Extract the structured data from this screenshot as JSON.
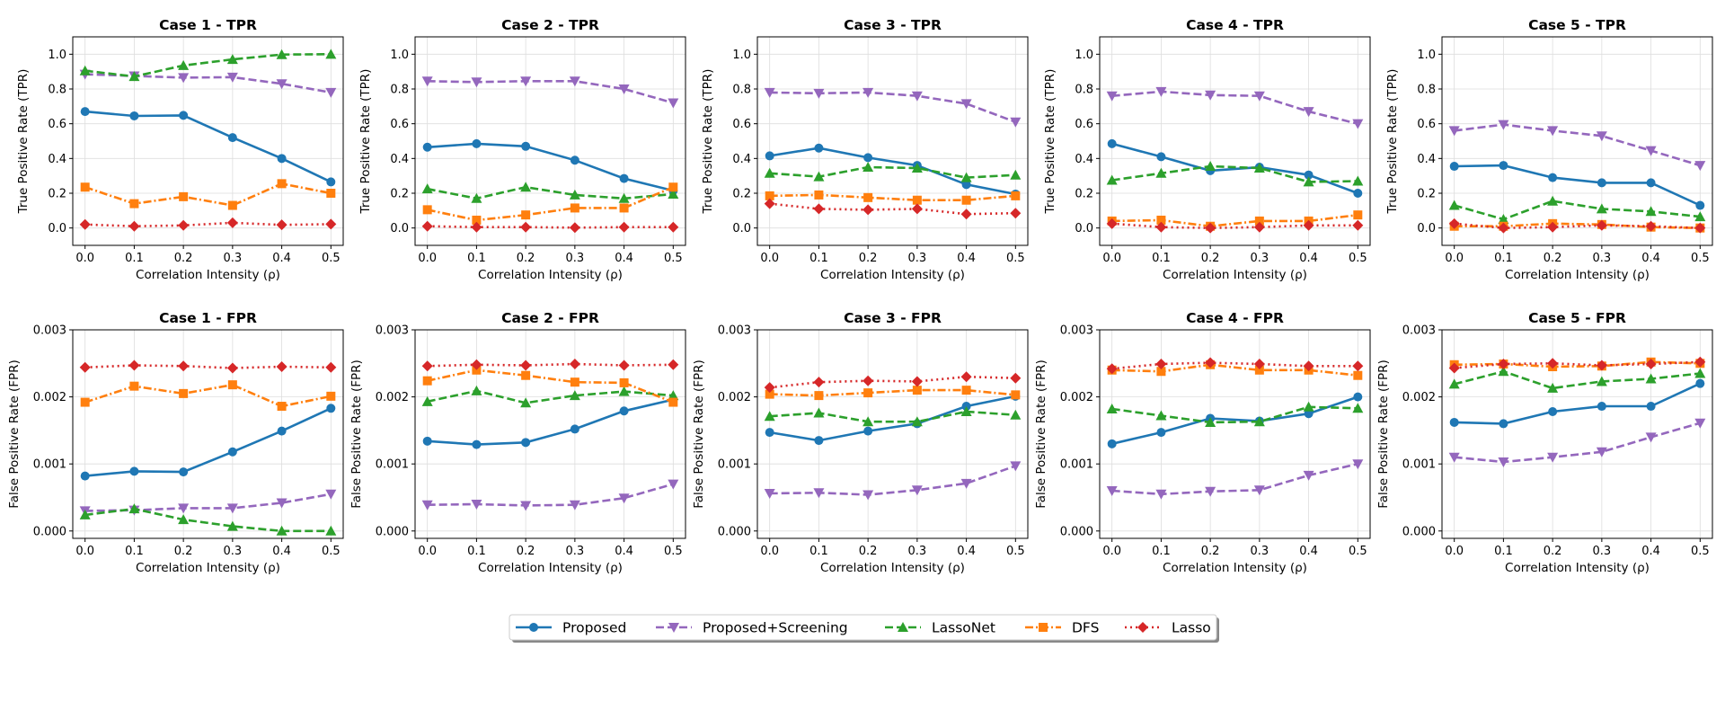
{
  "figure": {
    "legend_position": "bottom-center",
    "legend": [
      {
        "name": "Proposed",
        "color": "#1f77b4",
        "marker": "circle",
        "dash": "solid"
      },
      {
        "name": "Proposed+Screening",
        "color": "#9467bd",
        "marker": "triangle-down",
        "dash": "dashed"
      },
      {
        "name": "LassoNet",
        "color": "#2ca02c",
        "marker": "triangle-up",
        "dash": "dashed"
      },
      {
        "name": "DFS",
        "color": "#ff7f0e",
        "marker": "square",
        "dash": "dashdot"
      },
      {
        "name": "Lasso",
        "color": "#d62728",
        "marker": "diamond",
        "dash": "dotted"
      }
    ]
  },
  "chart_data": [
    {
      "type": "line",
      "title": "Case 1 - TPR",
      "xlabel": "Correlation Intensity (ρ)",
      "ylabel": "True Positive Rate (TPR)",
      "x": [
        0.0,
        0.1,
        0.2,
        0.3,
        0.4,
        0.5
      ],
      "xticks": [
        "0.0",
        "0.1",
        "0.2",
        "0.3",
        "0.4",
        "0.5"
      ],
      "ylim": [
        -0.1,
        1.1
      ],
      "yticks": [
        "0.0",
        "0.2",
        "0.4",
        "0.6",
        "0.8",
        "1.0"
      ],
      "grid": true,
      "series": [
        {
          "name": "Proposed",
          "values": [
            0.67,
            0.645,
            0.648,
            0.52,
            0.4,
            0.265
          ]
        },
        {
          "name": "Proposed+Screening",
          "values": [
            0.885,
            0.875,
            0.865,
            0.868,
            0.83,
            0.78
          ]
        },
        {
          "name": "LassoNet",
          "values": [
            0.905,
            0.872,
            0.935,
            0.97,
            0.998,
            1.0
          ]
        },
        {
          "name": "DFS",
          "values": [
            0.235,
            0.14,
            0.18,
            0.13,
            0.255,
            0.2
          ]
        },
        {
          "name": "Lasso",
          "values": [
            0.02,
            0.01,
            0.015,
            0.03,
            0.018,
            0.022
          ]
        }
      ]
    },
    {
      "type": "line",
      "title": "Case 2 - TPR",
      "xlabel": "Correlation Intensity (ρ)",
      "ylabel": "True Positive Rate (TPR)",
      "x": [
        0.0,
        0.1,
        0.2,
        0.3,
        0.4,
        0.5
      ],
      "xticks": [
        "0.0",
        "0.1",
        "0.2",
        "0.3",
        "0.4",
        "0.5"
      ],
      "ylim": [
        -0.1,
        1.1
      ],
      "yticks": [
        "0.0",
        "0.2",
        "0.4",
        "0.6",
        "0.8",
        "1.0"
      ],
      "grid": true,
      "series": [
        {
          "name": "Proposed",
          "values": [
            0.465,
            0.485,
            0.47,
            0.39,
            0.285,
            0.215
          ]
        },
        {
          "name": "Proposed+Screening",
          "values": [
            0.845,
            0.84,
            0.845,
            0.845,
            0.8,
            0.72
          ]
        },
        {
          "name": "LassoNet",
          "values": [
            0.225,
            0.17,
            0.235,
            0.19,
            0.17,
            0.195
          ]
        },
        {
          "name": "DFS",
          "values": [
            0.105,
            0.045,
            0.075,
            0.115,
            0.115,
            0.235
          ]
        },
        {
          "name": "Lasso",
          "values": [
            0.01,
            0.005,
            0.005,
            0.002,
            0.005,
            0.005
          ]
        }
      ]
    },
    {
      "type": "line",
      "title": "Case 3 - TPR",
      "xlabel": "Correlation Intensity (ρ)",
      "ylabel": "True Positive Rate (TPR)",
      "x": [
        0.0,
        0.1,
        0.2,
        0.3,
        0.4,
        0.5
      ],
      "xticks": [
        "0.0",
        "0.1",
        "0.2",
        "0.3",
        "0.4",
        "0.5"
      ],
      "ylim": [
        -0.1,
        1.1
      ],
      "yticks": [
        "0.0",
        "0.2",
        "0.4",
        "0.6",
        "0.8",
        "1.0"
      ],
      "grid": true,
      "series": [
        {
          "name": "Proposed",
          "values": [
            0.415,
            0.46,
            0.405,
            0.36,
            0.25,
            0.195
          ]
        },
        {
          "name": "Proposed+Screening",
          "values": [
            0.78,
            0.775,
            0.78,
            0.76,
            0.715,
            0.61
          ]
        },
        {
          "name": "LassoNet",
          "values": [
            0.315,
            0.295,
            0.35,
            0.345,
            0.29,
            0.305
          ]
        },
        {
          "name": "DFS",
          "values": [
            0.185,
            0.19,
            0.175,
            0.16,
            0.16,
            0.185
          ]
        },
        {
          "name": "Lasso",
          "values": [
            0.14,
            0.11,
            0.105,
            0.11,
            0.08,
            0.085
          ]
        }
      ]
    },
    {
      "type": "line",
      "title": "Case 4 - TPR",
      "xlabel": "Correlation Intensity (ρ)",
      "ylabel": "True Positive Rate (TPR)",
      "x": [
        0.0,
        0.1,
        0.2,
        0.3,
        0.4,
        0.5
      ],
      "xticks": [
        "0.0",
        "0.1",
        "0.2",
        "0.3",
        "0.4",
        "0.5"
      ],
      "ylim": [
        -0.1,
        1.1
      ],
      "yticks": [
        "0.0",
        "0.2",
        "0.4",
        "0.6",
        "0.8",
        "1.0"
      ],
      "grid": true,
      "series": [
        {
          "name": "Proposed",
          "values": [
            0.485,
            0.41,
            0.33,
            0.35,
            0.305,
            0.2
          ]
        },
        {
          "name": "Proposed+Screening",
          "values": [
            0.76,
            0.785,
            0.765,
            0.76,
            0.67,
            0.6
          ]
        },
        {
          "name": "LassoNet",
          "values": [
            0.275,
            0.315,
            0.355,
            0.345,
            0.265,
            0.27
          ]
        },
        {
          "name": "DFS",
          "values": [
            0.04,
            0.045,
            0.01,
            0.04,
            0.04,
            0.075
          ]
        },
        {
          "name": "Lasso",
          "values": [
            0.025,
            0.005,
            0.0,
            0.005,
            0.015,
            0.015
          ]
        }
      ]
    },
    {
      "type": "line",
      "title": "Case 5 - TPR",
      "xlabel": "Correlation Intensity (ρ)",
      "ylabel": "True Positive Rate (TPR)",
      "x": [
        0.0,
        0.1,
        0.2,
        0.3,
        0.4,
        0.5
      ],
      "xticks": [
        "0.0",
        "0.1",
        "0.2",
        "0.3",
        "0.4",
        "0.5"
      ],
      "ylim": [
        -0.1,
        1.1
      ],
      "yticks": [
        "0.0",
        "0.2",
        "0.4",
        "0.6",
        "0.8",
        "1.0"
      ],
      "grid": true,
      "series": [
        {
          "name": "Proposed",
          "values": [
            0.355,
            0.36,
            0.29,
            0.26,
            0.26,
            0.13
          ]
        },
        {
          "name": "Proposed+Screening",
          "values": [
            0.56,
            0.595,
            0.56,
            0.53,
            0.445,
            0.36
          ]
        },
        {
          "name": "LassoNet",
          "values": [
            0.13,
            0.05,
            0.155,
            0.11,
            0.095,
            0.065
          ]
        },
        {
          "name": "DFS",
          "values": [
            0.01,
            0.01,
            0.025,
            0.02,
            0.005,
            0.0
          ]
        },
        {
          "name": "Lasso",
          "values": [
            0.025,
            0.0,
            0.005,
            0.015,
            0.01,
            0.0
          ]
        }
      ]
    },
    {
      "type": "line",
      "title": "Case 1 - FPR",
      "xlabel": "Correlation Intensity (ρ)",
      "ylabel": "False Positive Rate (FPR)",
      "x": [
        0.0,
        0.1,
        0.2,
        0.3,
        0.4,
        0.5
      ],
      "xticks": [
        "0.0",
        "0.1",
        "0.2",
        "0.3",
        "0.4",
        "0.5"
      ],
      "ylim": [
        -0.00011,
        0.003
      ],
      "yticks": [
        "0.000",
        "0.001",
        "0.002",
        "0.003"
      ],
      "grid": true,
      "series": [
        {
          "name": "Proposed",
          "values": [
            0.00082,
            0.00089,
            0.00088,
            0.00118,
            0.00149,
            0.00183
          ]
        },
        {
          "name": "Proposed+Screening",
          "values": [
            0.0003,
            0.00031,
            0.00034,
            0.00034,
            0.00042,
            0.00055
          ]
        },
        {
          "name": "LassoNet",
          "values": [
            0.00024,
            0.00033,
            0.00017,
            7e-05,
            0.0,
            0.0
          ]
        },
        {
          "name": "DFS",
          "values": [
            0.00192,
            0.00216,
            0.00205,
            0.00218,
            0.00186,
            0.00201
          ]
        },
        {
          "name": "Lasso",
          "values": [
            0.00244,
            0.00247,
            0.00246,
            0.00243,
            0.00245,
            0.00244
          ]
        }
      ]
    },
    {
      "type": "line",
      "title": "Case 2 - FPR",
      "xlabel": "Correlation Intensity (ρ)",
      "ylabel": "False Positive Rate (FPR)",
      "x": [
        0.0,
        0.1,
        0.2,
        0.3,
        0.4,
        0.5
      ],
      "xticks": [
        "0.0",
        "0.1",
        "0.2",
        "0.3",
        "0.4",
        "0.5"
      ],
      "ylim": [
        -0.00011,
        0.003
      ],
      "yticks": [
        "0.000",
        "0.001",
        "0.002",
        "0.003"
      ],
      "grid": true,
      "series": [
        {
          "name": "Proposed",
          "values": [
            0.00134,
            0.00129,
            0.00132,
            0.00152,
            0.00179,
            0.00196
          ]
        },
        {
          "name": "Proposed+Screening",
          "values": [
            0.00039,
            0.0004,
            0.00038,
            0.00039,
            0.00049,
            0.0007
          ]
        },
        {
          "name": "LassoNet",
          "values": [
            0.00193,
            0.00209,
            0.00191,
            0.00202,
            0.00208,
            0.00202
          ]
        },
        {
          "name": "DFS",
          "values": [
            0.00224,
            0.0024,
            0.00232,
            0.00222,
            0.00221,
            0.00192
          ]
        },
        {
          "name": "Lasso",
          "values": [
            0.00246,
            0.00248,
            0.00247,
            0.00249,
            0.00247,
            0.00248
          ]
        }
      ]
    },
    {
      "type": "line",
      "title": "Case 3 - FPR",
      "xlabel": "Correlation Intensity (ρ)",
      "ylabel": "False Positive Rate (FPR)",
      "x": [
        0.0,
        0.1,
        0.2,
        0.3,
        0.4,
        0.5
      ],
      "xticks": [
        "0.0",
        "0.1",
        "0.2",
        "0.3",
        "0.4",
        "0.5"
      ],
      "ylim": [
        -0.00011,
        0.003
      ],
      "yticks": [
        "0.000",
        "0.001",
        "0.002",
        "0.003"
      ],
      "grid": true,
      "series": [
        {
          "name": "Proposed",
          "values": [
            0.00147,
            0.00135,
            0.00149,
            0.0016,
            0.00186,
            0.00201
          ]
        },
        {
          "name": "Proposed+Screening",
          "values": [
            0.00056,
            0.00057,
            0.00054,
            0.00061,
            0.00071,
            0.00097
          ]
        },
        {
          "name": "LassoNet",
          "values": [
            0.00171,
            0.00176,
            0.00163,
            0.00163,
            0.00178,
            0.00173
          ]
        },
        {
          "name": "DFS",
          "values": [
            0.00204,
            0.00202,
            0.00206,
            0.0021,
            0.0021,
            0.00203
          ]
        },
        {
          "name": "Lasso",
          "values": [
            0.00214,
            0.00222,
            0.00224,
            0.00223,
            0.0023,
            0.00228
          ]
        }
      ]
    },
    {
      "type": "line",
      "title": "Case 4 - FPR",
      "xlabel": "Correlation Intensity (ρ)",
      "ylabel": "False Positive Rate (FPR)",
      "x": [
        0.0,
        0.1,
        0.2,
        0.3,
        0.4,
        0.5
      ],
      "xticks": [
        "0.0",
        "0.1",
        "0.2",
        "0.3",
        "0.4",
        "0.5"
      ],
      "ylim": [
        -0.00011,
        0.003
      ],
      "yticks": [
        "0.000",
        "0.001",
        "0.002",
        "0.003"
      ],
      "grid": true,
      "series": [
        {
          "name": "Proposed",
          "values": [
            0.0013,
            0.00147,
            0.00168,
            0.00164,
            0.00175,
            0.002
          ]
        },
        {
          "name": "Proposed+Screening",
          "values": [
            0.0006,
            0.00055,
            0.00059,
            0.00061,
            0.00083,
            0.001
          ]
        },
        {
          "name": "LassoNet",
          "values": [
            0.00182,
            0.00172,
            0.00162,
            0.00163,
            0.00185,
            0.00183
          ]
        },
        {
          "name": "DFS",
          "values": [
            0.0024,
            0.00238,
            0.00248,
            0.0024,
            0.0024,
            0.00232
          ]
        },
        {
          "name": "Lasso",
          "values": [
            0.00242,
            0.00249,
            0.00251,
            0.00249,
            0.00246,
            0.00246
          ]
        }
      ]
    },
    {
      "type": "line",
      "title": "Case 5 - FPR",
      "xlabel": "Correlation Intensity (ρ)",
      "ylabel": "False Positive Rate (FPR)",
      "x": [
        0.0,
        0.1,
        0.2,
        0.3,
        0.4,
        0.5
      ],
      "xticks": [
        "0.0",
        "0.1",
        "0.2",
        "0.3",
        "0.4",
        "0.5"
      ],
      "ylim": [
        -0.00011,
        0.003
      ],
      "yticks": [
        "0.000",
        "0.001",
        "0.002",
        "0.003"
      ],
      "grid": true,
      "series": [
        {
          "name": "Proposed",
          "values": [
            0.00162,
            0.0016,
            0.00178,
            0.00186,
            0.00186,
            0.0022
          ]
        },
        {
          "name": "Proposed+Screening",
          "values": [
            0.0011,
            0.00103,
            0.0011,
            0.00118,
            0.0014,
            0.00161
          ]
        },
        {
          "name": "LassoNet",
          "values": [
            0.00219,
            0.00238,
            0.00213,
            0.00223,
            0.00227,
            0.00235
          ]
        },
        {
          "name": "DFS",
          "values": [
            0.00248,
            0.00249,
            0.00245,
            0.00246,
            0.00252,
            0.0025
          ]
        },
        {
          "name": "Lasso",
          "values": [
            0.00243,
            0.00249,
            0.0025,
            0.00247,
            0.00249,
            0.00252
          ]
        }
      ]
    }
  ]
}
